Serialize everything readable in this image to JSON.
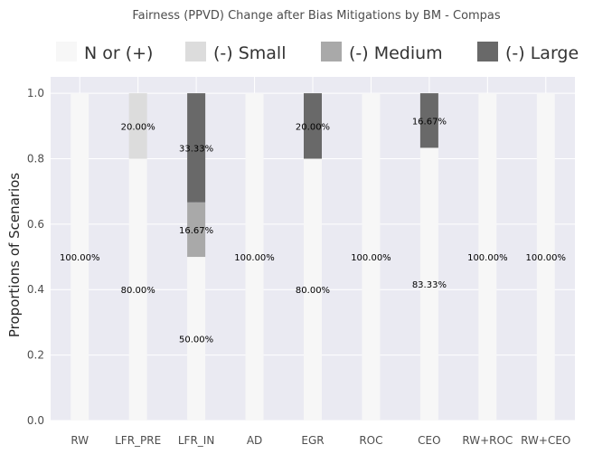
{
  "chart_data": {
    "type": "bar",
    "stacked": true,
    "title": "Fairness (PPVD) Change after Bias Mitigations by BM - Compas",
    "xlabel": "",
    "ylabel": "Proportions of Scenarios",
    "ylim": [
      0,
      1.05
    ],
    "yticks": [
      "0.0",
      "0.2",
      "0.4",
      "0.6",
      "0.8",
      "1.0"
    ],
    "grid": true,
    "legend_position": "top",
    "categories": [
      "RW",
      "LFR_PRE",
      "LFR_IN",
      "AD",
      "EGR",
      "ROC",
      "CEO",
      "RW+ROC",
      "RW+CEO"
    ],
    "series": [
      {
        "name": "N or (+)",
        "color": "#f7f7f7",
        "values": [
          1.0,
          0.8,
          0.5,
          1.0,
          0.8,
          1.0,
          0.8333,
          1.0,
          1.0
        ],
        "labels": [
          "100.00%",
          "80.00%",
          "50.00%",
          "100.00%",
          "80.00%",
          "100.00%",
          "83.33%",
          "100.00%",
          "100.00%"
        ]
      },
      {
        "name": "(-) Small",
        "color": "#dcdcdc",
        "values": [
          0,
          0.2,
          0,
          0,
          0,
          0,
          0,
          0,
          0
        ],
        "labels": [
          "",
          "20.00%",
          "",
          "",
          "",
          "",
          "",
          "",
          ""
        ]
      },
      {
        "name": "(-) Medium",
        "color": "#a9a9a9",
        "values": [
          0,
          0,
          0.1667,
          0,
          0,
          0,
          0,
          0,
          0
        ],
        "labels": [
          "",
          "",
          "16.67%",
          "",
          "",
          "",
          "",
          "",
          ""
        ]
      },
      {
        "name": "(-) Large",
        "color": "#696969",
        "values": [
          0,
          0,
          0.3333,
          0,
          0.2,
          0,
          0.1667,
          0,
          0
        ],
        "labels": [
          "",
          "",
          "33.33%",
          "",
          "20.00%",
          "",
          "16.67%",
          "",
          ""
        ]
      }
    ]
  }
}
